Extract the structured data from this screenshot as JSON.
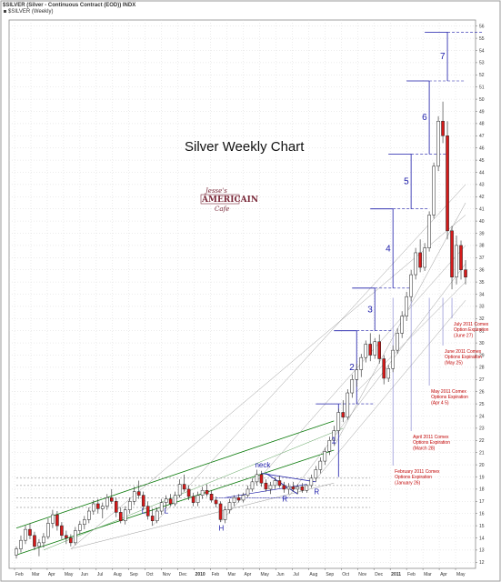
{
  "header": {
    "symbol_line": "$SILVER (Silver - Continuous Contract (EOD)) INDX",
    "legend_line": "$SILVER (Weekly)"
  },
  "logo": {
    "line1": "Jesse's",
    "line2": "AMERICAIN",
    "line3": "Cafe"
  },
  "colors": {
    "up": "#ffffff",
    "down": "#d61a1a",
    "channel": "#0a7a0a",
    "wave": "#1a1aa8",
    "expiry": "#c00000",
    "grid": "#d8d8d8"
  },
  "chart_data": {
    "type": "candlestick",
    "title": "Silver Weekly Chart",
    "x_labels": [
      "Feb",
      "Mar",
      "Apr",
      "May",
      "Jun",
      "Jul",
      "Aug",
      "Sep",
      "Oct",
      "Nov",
      "Dec",
      "2010",
      "Feb",
      "Mar",
      "Apr",
      "May",
      "Jun",
      "Jul",
      "Aug",
      "Sep",
      "Oct",
      "Nov",
      "Dec",
      "2011",
      "Feb",
      "Mar",
      "Apr",
      "May"
    ],
    "y_labels": [
      "12",
      "13",
      "14",
      "15",
      "16",
      "17",
      "18",
      "19",
      "20",
      "21",
      "22",
      "23",
      "24",
      "25",
      "26",
      "27",
      "28",
      "29",
      "30",
      "31",
      "32",
      "33",
      "34",
      "35",
      "36",
      "37",
      "38",
      "39",
      "40",
      "41",
      "42",
      "43",
      "44",
      "45",
      "46",
      "47",
      "48",
      "49",
      "50",
      "51",
      "52",
      "53",
      "54",
      "55",
      "56"
    ],
    "ylim": [
      11.5,
      56.5
    ],
    "y_axis_side": "right",
    "grid": true,
    "candles": [
      {
        "week": 0,
        "o": 12.6,
        "h": 13.3,
        "l": 12.3,
        "c": 13.1
      },
      {
        "week": 1,
        "o": 13.1,
        "h": 14.2,
        "l": 12.8,
        "c": 13.8
      },
      {
        "week": 2,
        "o": 13.8,
        "h": 15.0,
        "l": 13.5,
        "c": 14.7
      },
      {
        "week": 3,
        "o": 14.7,
        "h": 15.2,
        "l": 13.9,
        "c": 14.2
      },
      {
        "week": 4,
        "o": 14.2,
        "h": 14.5,
        "l": 13.0,
        "c": 13.3
      },
      {
        "week": 5,
        "o": 13.3,
        "h": 13.9,
        "l": 12.5,
        "c": 13.6
      },
      {
        "week": 6,
        "o": 13.6,
        "h": 14.4,
        "l": 13.2,
        "c": 14.1
      },
      {
        "week": 7,
        "o": 14.1,
        "h": 15.6,
        "l": 13.9,
        "c": 15.2
      },
      {
        "week": 8,
        "o": 15.2,
        "h": 16.3,
        "l": 14.8,
        "c": 15.9
      },
      {
        "week": 9,
        "o": 15.9,
        "h": 16.2,
        "l": 14.6,
        "c": 15.0
      },
      {
        "week": 10,
        "o": 15.0,
        "h": 15.3,
        "l": 13.9,
        "c": 14.2
      },
      {
        "week": 11,
        "o": 14.2,
        "h": 14.6,
        "l": 13.5,
        "c": 14.0
      },
      {
        "week": 12,
        "o": 14.0,
        "h": 14.3,
        "l": 13.3,
        "c": 13.6
      },
      {
        "week": 13,
        "o": 13.6,
        "h": 14.9,
        "l": 13.4,
        "c": 14.6
      },
      {
        "week": 14,
        "o": 14.6,
        "h": 15.4,
        "l": 14.3,
        "c": 15.1
      },
      {
        "week": 15,
        "o": 15.1,
        "h": 15.8,
        "l": 14.7,
        "c": 15.5
      },
      {
        "week": 16,
        "o": 15.5,
        "h": 16.5,
        "l": 15.2,
        "c": 16.2
      },
      {
        "week": 17,
        "o": 16.2,
        "h": 17.1,
        "l": 15.9,
        "c": 16.8
      },
      {
        "week": 18,
        "o": 16.8,
        "h": 17.2,
        "l": 16.0,
        "c": 16.4
      },
      {
        "week": 19,
        "o": 16.4,
        "h": 16.9,
        "l": 15.6,
        "c": 16.6
      },
      {
        "week": 20,
        "o": 16.6,
        "h": 17.6,
        "l": 16.3,
        "c": 17.3
      },
      {
        "week": 21,
        "o": 17.3,
        "h": 18.0,
        "l": 16.8,
        "c": 17.0
      },
      {
        "week": 22,
        "o": 17.0,
        "h": 17.3,
        "l": 15.7,
        "c": 16.1
      },
      {
        "week": 23,
        "o": 16.1,
        "h": 16.5,
        "l": 15.2,
        "c": 15.4
      },
      {
        "week": 24,
        "o": 15.4,
        "h": 16.6,
        "l": 15.1,
        "c": 16.3
      },
      {
        "week": 25,
        "o": 16.3,
        "h": 17.3,
        "l": 16.0,
        "c": 17.0
      },
      {
        "week": 26,
        "o": 17.0,
        "h": 18.2,
        "l": 16.7,
        "c": 17.8
      },
      {
        "week": 27,
        "o": 17.8,
        "h": 18.7,
        "l": 17.2,
        "c": 17.5
      },
      {
        "week": 28,
        "o": 17.5,
        "h": 17.8,
        "l": 16.3,
        "c": 16.6
      },
      {
        "week": 29,
        "o": 16.6,
        "h": 17.0,
        "l": 15.5,
        "c": 15.8
      },
      {
        "week": 30,
        "o": 15.8,
        "h": 16.4,
        "l": 15.0,
        "c": 15.4
      },
      {
        "week": 31,
        "o": 15.4,
        "h": 16.5,
        "l": 15.2,
        "c": 16.2
      },
      {
        "week": 32,
        "o": 16.2,
        "h": 17.2,
        "l": 15.9,
        "c": 16.9
      },
      {
        "week": 33,
        "o": 16.9,
        "h": 17.5,
        "l": 16.4,
        "c": 17.2
      },
      {
        "week": 34,
        "o": 17.2,
        "h": 17.6,
        "l": 16.6,
        "c": 16.8
      },
      {
        "week": 35,
        "o": 16.8,
        "h": 17.8,
        "l": 16.6,
        "c": 17.5
      },
      {
        "week": 36,
        "o": 17.5,
        "h": 18.8,
        "l": 17.3,
        "c": 18.4
      },
      {
        "week": 37,
        "o": 18.4,
        "h": 19.2,
        "l": 17.8,
        "c": 18.0
      },
      {
        "week": 38,
        "o": 18.0,
        "h": 18.3,
        "l": 17.1,
        "c": 17.4
      },
      {
        "week": 39,
        "o": 17.4,
        "h": 17.7,
        "l": 16.6,
        "c": 16.9
      },
      {
        "week": 40,
        "o": 16.9,
        "h": 17.8,
        "l": 16.6,
        "c": 17.5
      },
      {
        "week": 41,
        "o": 17.5,
        "h": 18.2,
        "l": 17.2,
        "c": 17.9
      },
      {
        "week": 42,
        "o": 17.9,
        "h": 18.4,
        "l": 17.4,
        "c": 17.6
      },
      {
        "week": 43,
        "o": 17.6,
        "h": 17.9,
        "l": 16.9,
        "c": 17.1
      },
      {
        "week": 44,
        "o": 17.1,
        "h": 17.4,
        "l": 16.5,
        "c": 16.8
      },
      {
        "week": 45,
        "o": 16.8,
        "h": 17.0,
        "l": 15.3,
        "c": 15.5
      },
      {
        "week": 46,
        "o": 15.5,
        "h": 16.6,
        "l": 15.2,
        "c": 16.3
      },
      {
        "week": 47,
        "o": 16.3,
        "h": 17.2,
        "l": 16.0,
        "c": 16.9
      },
      {
        "week": 48,
        "o": 16.9,
        "h": 17.5,
        "l": 16.6,
        "c": 17.3
      },
      {
        "week": 49,
        "o": 17.3,
        "h": 17.6,
        "l": 16.9,
        "c": 17.1
      },
      {
        "week": 50,
        "o": 17.1,
        "h": 17.7,
        "l": 16.9,
        "c": 17.5
      },
      {
        "week": 51,
        "o": 17.5,
        "h": 18.3,
        "l": 17.3,
        "c": 18.0
      },
      {
        "week": 52,
        "o": 18.0,
        "h": 18.9,
        "l": 17.8,
        "c": 18.6
      },
      {
        "week": 53,
        "o": 18.6,
        "h": 19.6,
        "l": 18.3,
        "c": 19.2
      },
      {
        "week": 54,
        "o": 19.2,
        "h": 19.5,
        "l": 18.2,
        "c": 18.5
      },
      {
        "week": 55,
        "o": 18.5,
        "h": 18.8,
        "l": 17.8,
        "c": 18.0
      },
      {
        "week": 56,
        "o": 18.0,
        "h": 18.6,
        "l": 17.6,
        "c": 18.3
      },
      {
        "week": 57,
        "o": 18.3,
        "h": 19.0,
        "l": 18.0,
        "c": 18.7
      },
      {
        "week": 58,
        "o": 18.7,
        "h": 19.1,
        "l": 18.1,
        "c": 18.3
      },
      {
        "week": 59,
        "o": 18.3,
        "h": 18.6,
        "l": 17.7,
        "c": 18.0
      },
      {
        "week": 60,
        "o": 18.0,
        "h": 18.5,
        "l": 17.6,
        "c": 18.2
      },
      {
        "week": 61,
        "o": 18.2,
        "h": 18.6,
        "l": 17.8,
        "c": 18.0
      },
      {
        "week": 62,
        "o": 18.0,
        "h": 18.4,
        "l": 17.6,
        "c": 18.2
      },
      {
        "week": 63,
        "o": 18.2,
        "h": 18.5,
        "l": 17.7,
        "c": 17.9
      },
      {
        "week": 64,
        "o": 17.9,
        "h": 18.4,
        "l": 17.7,
        "c": 18.3
      },
      {
        "week": 65,
        "o": 18.3,
        "h": 19.2,
        "l": 18.1,
        "c": 18.9
      },
      {
        "week": 66,
        "o": 18.9,
        "h": 19.9,
        "l": 18.6,
        "c": 19.6
      },
      {
        "week": 67,
        "o": 19.6,
        "h": 20.6,
        "l": 19.3,
        "c": 20.3
      },
      {
        "week": 68,
        "o": 20.3,
        "h": 21.4,
        "l": 20.0,
        "c": 21.1
      },
      {
        "week": 69,
        "o": 21.1,
        "h": 22.3,
        "l": 20.8,
        "c": 22.0
      },
      {
        "week": 70,
        "o": 22.0,
        "h": 23.2,
        "l": 21.6,
        "c": 22.8
      },
      {
        "week": 71,
        "o": 22.8,
        "h": 24.6,
        "l": 22.5,
        "c": 24.3
      },
      {
        "week": 72,
        "o": 24.3,
        "h": 25.3,
        "l": 23.5,
        "c": 23.9
      },
      {
        "week": 73,
        "o": 23.9,
        "h": 26.2,
        "l": 23.7,
        "c": 25.9
      },
      {
        "week": 74,
        "o": 25.9,
        "h": 27.4,
        "l": 25.5,
        "c": 27.0
      },
      {
        "week": 75,
        "o": 27.0,
        "h": 28.3,
        "l": 26.4,
        "c": 27.8
      },
      {
        "week": 76,
        "o": 27.8,
        "h": 29.1,
        "l": 27.2,
        "c": 28.8
      },
      {
        "week": 77,
        "o": 28.8,
        "h": 30.2,
        "l": 28.4,
        "c": 29.9
      },
      {
        "week": 78,
        "o": 29.9,
        "h": 30.8,
        "l": 28.5,
        "c": 29.0
      },
      {
        "week": 79,
        "o": 29.0,
        "h": 30.4,
        "l": 28.7,
        "c": 30.1
      },
      {
        "week": 80,
        "o": 30.1,
        "h": 30.7,
        "l": 28.3,
        "c": 28.7
      },
      {
        "week": 81,
        "o": 28.7,
        "h": 29.0,
        "l": 26.6,
        "c": 27.1
      },
      {
        "week": 82,
        "o": 27.1,
        "h": 28.2,
        "l": 26.8,
        "c": 27.9
      },
      {
        "week": 83,
        "o": 27.9,
        "h": 29.8,
        "l": 27.6,
        "c": 29.4
      },
      {
        "week": 84,
        "o": 29.4,
        "h": 31.2,
        "l": 29.1,
        "c": 30.8
      },
      {
        "week": 85,
        "o": 30.8,
        "h": 32.6,
        "l": 30.4,
        "c": 32.2
      },
      {
        "week": 86,
        "o": 32.2,
        "h": 34.2,
        "l": 31.8,
        "c": 33.8
      },
      {
        "week": 87,
        "o": 33.8,
        "h": 36.0,
        "l": 33.4,
        "c": 35.6
      },
      {
        "week": 88,
        "o": 35.6,
        "h": 37.8,
        "l": 35.2,
        "c": 37.4
      },
      {
        "week": 89,
        "o": 37.4,
        "h": 38.5,
        "l": 35.8,
        "c": 36.2
      },
      {
        "week": 90,
        "o": 36.2,
        "h": 38.2,
        "l": 35.9,
        "c": 37.8
      },
      {
        "week": 91,
        "o": 37.8,
        "h": 40.8,
        "l": 37.5,
        "c": 40.5
      },
      {
        "week": 92,
        "o": 40.5,
        "h": 44.8,
        "l": 40.2,
        "c": 44.5
      },
      {
        "week": 93,
        "o": 44.5,
        "h": 48.6,
        "l": 44.1,
        "c": 48.2
      },
      {
        "week": 94,
        "o": 48.2,
        "h": 49.8,
        "l": 46.4,
        "c": 47.0
      },
      {
        "week": 95,
        "o": 47.0,
        "h": 48.2,
        "l": 38.5,
        "c": 39.2
      },
      {
        "week": 96,
        "o": 39.2,
        "h": 39.6,
        "l": 34.4,
        "c": 35.4
      },
      {
        "week": 97,
        "o": 35.4,
        "h": 38.8,
        "l": 34.8,
        "c": 38.0
      },
      {
        "week": 98,
        "o": 38.0,
        "h": 38.4,
        "l": 35.2,
        "c": 36.0
      },
      {
        "week": 99,
        "o": 36.0,
        "h": 36.8,
        "l": 34.8,
        "c": 35.4
      }
    ],
    "text_labels": {
      "neck": "neck",
      "L1": "L",
      "L2": "L",
      "H": "H",
      "R1": "R",
      "R2": "R"
    },
    "waves": [
      "1",
      "2",
      "3",
      "4",
      "5",
      "6",
      "7"
    ],
    "expiries": [
      {
        "week": 96,
        "lines": [
          "July 2011 Comex",
          "Option Expiration",
          "(June 27)"
        ]
      },
      {
        "week": 94,
        "lines": [
          "June 2011 Comex",
          "Options Expiration",
          "(May 25)"
        ]
      },
      {
        "week": 91,
        "lines": [
          "May 2011 Comex",
          "Options Expiration",
          "(Apr 4 5)"
        ]
      },
      {
        "week": 87,
        "lines": [
          "April 2011 Comex",
          "Options Expiration",
          "(March 28)"
        ]
      },
      {
        "week": 83,
        "lines": [
          "February 2011 Comex",
          "Options Expiration",
          "(January 26)"
        ]
      }
    ]
  }
}
